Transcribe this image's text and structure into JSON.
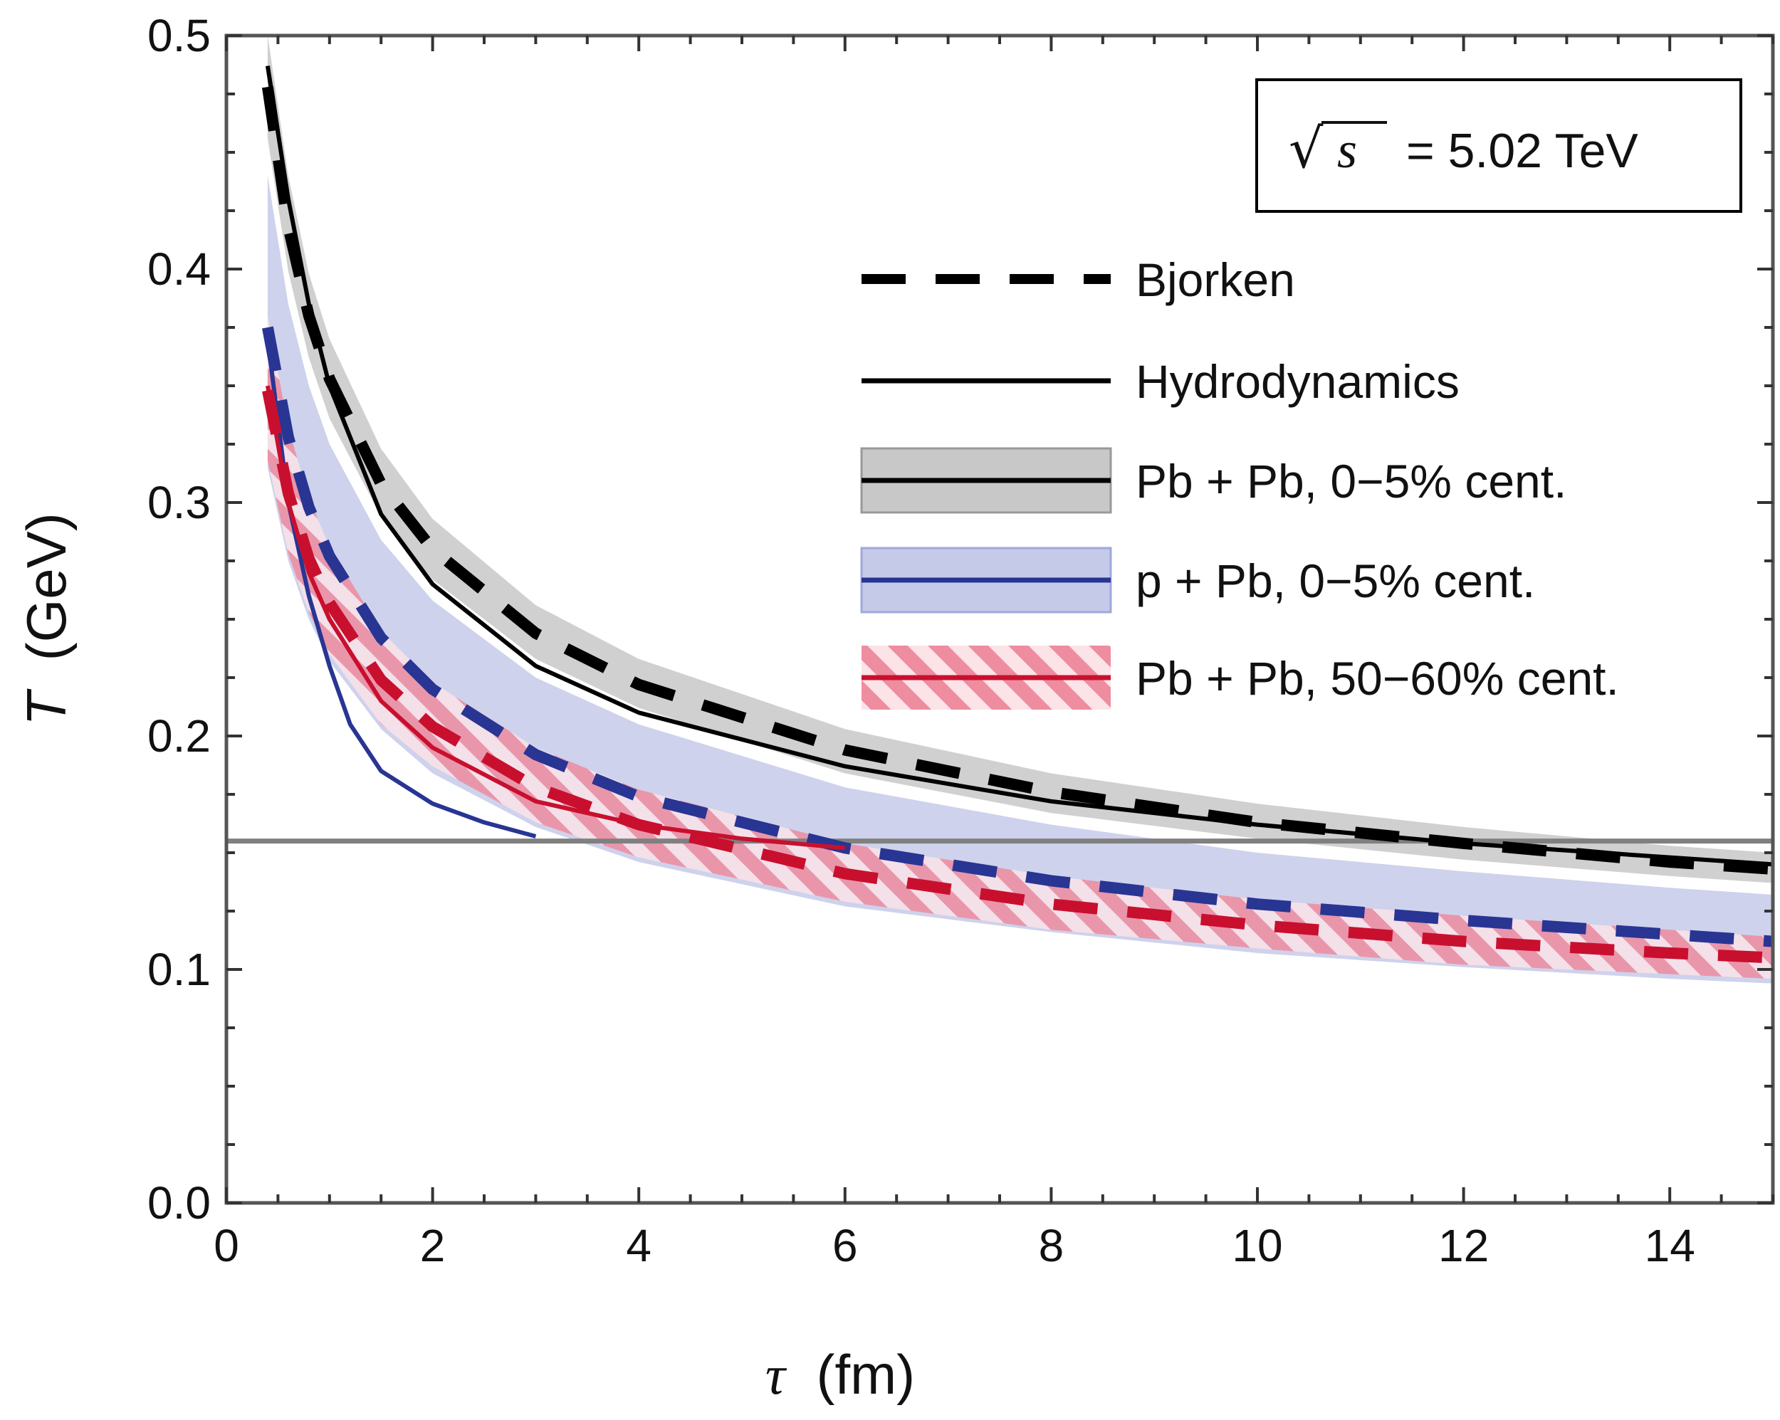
{
  "chart_data": {
    "type": "line",
    "xlabel_symbol": "τ",
    "xlabel_unit": "(fm)",
    "ylabel_symbol": "T",
    "ylabel_unit": "(GeV)",
    "xlim": [
      0,
      15
    ],
    "ylim": [
      0,
      0.5
    ],
    "x_ticks": [
      "0",
      "2",
      "4",
      "6",
      "8",
      "10",
      "12",
      "14"
    ],
    "y_ticks": [
      "0.0",
      "0.1",
      "0.2",
      "0.3",
      "0.4",
      "0.5"
    ],
    "annotation": {
      "sqrt_symbol": "√",
      "variable": "s",
      "value": "= 5.02 TeV"
    },
    "reference_line": {
      "y": 0.155,
      "color": "#808080"
    },
    "legend": [
      {
        "label": "Bjorken",
        "style": "dashed"
      },
      {
        "label": "Hydrodynamics",
        "style": "solid"
      },
      {
        "label": "Pb + Pb, 0−5% cent.",
        "color": "#000000",
        "band": "solid-gray"
      },
      {
        "label": "p + Pb, 0−5% cent.",
        "color": "#283593",
        "band": "solid-blue"
      },
      {
        "label": "Pb + Pb, 50−60% cent.",
        "color": "#c8102e",
        "band": "hatched-red"
      }
    ],
    "colors": {
      "pbpb_central": "#000000",
      "ppb_central": "#283593",
      "pbpb_peripheral": "#c8102e",
      "band_gray": "#c8c8c8",
      "band_blue": "#c5cae9",
      "band_red": "#ef8fa0"
    },
    "series": [
      {
        "name": "Pb + Pb, 0−5% cent.",
        "kind": "Hydrodynamics",
        "color": "#000000",
        "x": [
          0.4,
          0.6,
          0.8,
          1.0,
          1.5,
          2.0,
          3.0,
          4.0,
          6.0,
          8.0,
          10.0,
          12.0,
          14.0,
          15.0
        ],
        "y": [
          0.487,
          0.43,
          0.385,
          0.35,
          0.295,
          0.265,
          0.23,
          0.21,
          0.187,
          0.172,
          0.162,
          0.154,
          0.148,
          0.145
        ]
      },
      {
        "name": "Pb + Pb, 0−5% cent.",
        "kind": "Bjorken",
        "color": "#000000",
        "x": [
          0.4,
          0.6,
          0.8,
          1.0,
          1.5,
          2.0,
          3.0,
          4.0,
          6.0,
          8.0,
          10.0,
          12.0,
          14.0,
          15.0
        ],
        "y": [
          0.478,
          0.418,
          0.38,
          0.353,
          0.308,
          0.28,
          0.244,
          0.222,
          0.194,
          0.176,
          0.163,
          0.154,
          0.146,
          0.143
        ]
      },
      {
        "name": "p + Pb, 0−5% cent.",
        "kind": "Hydrodynamics",
        "color": "#283593",
        "x": [
          0.4,
          0.6,
          0.8,
          1.0,
          1.2,
          1.5,
          2.0,
          2.5,
          3.0
        ],
        "y": [
          0.37,
          0.3,
          0.26,
          0.23,
          0.205,
          0.185,
          0.171,
          0.163,
          0.157
        ]
      },
      {
        "name": "p + Pb, 0−5% cent.",
        "kind": "Bjorken",
        "color": "#283593",
        "x": [
          0.4,
          0.6,
          0.8,
          1.0,
          1.5,
          2.0,
          3.0,
          4.0,
          6.0,
          8.0,
          10.0,
          12.0,
          14.0,
          15.0
        ],
        "y": [
          0.375,
          0.328,
          0.298,
          0.277,
          0.242,
          0.22,
          0.192,
          0.174,
          0.152,
          0.138,
          0.128,
          0.121,
          0.115,
          0.112
        ]
      },
      {
        "name": "Pb + Pb, 50−60% cent.",
        "kind": "Hydrodynamics",
        "color": "#c8102e",
        "x": [
          0.4,
          0.6,
          0.8,
          1.0,
          1.5,
          2.0,
          3.0,
          4.0,
          5.0,
          6.0
        ],
        "y": [
          0.35,
          0.3,
          0.27,
          0.25,
          0.215,
          0.195,
          0.172,
          0.162,
          0.156,
          0.152
        ]
      },
      {
        "name": "Pb + Pb, 50−60% cent.",
        "kind": "Bjorken",
        "color": "#c8102e",
        "x": [
          0.4,
          0.6,
          0.8,
          1.0,
          1.5,
          2.0,
          3.0,
          4.0,
          6.0,
          8.0,
          10.0,
          12.0,
          14.0,
          15.0
        ],
        "y": [
          0.348,
          0.304,
          0.276,
          0.257,
          0.224,
          0.204,
          0.178,
          0.162,
          0.141,
          0.128,
          0.119,
          0.112,
          0.107,
          0.105
        ]
      }
    ],
    "bands": [
      {
        "name": "Pb + Pb, 0−5% cent.",
        "fill": "#c8c8c8",
        "x": [
          0.4,
          0.6,
          0.8,
          1.0,
          1.5,
          2.0,
          3.0,
          4.0,
          6.0,
          8.0,
          10.0,
          12.0,
          14.0,
          15.0
        ],
        "upper": [
          0.5,
          0.44,
          0.398,
          0.37,
          0.323,
          0.293,
          0.256,
          0.233,
          0.203,
          0.184,
          0.171,
          0.161,
          0.153,
          0.15
        ],
        "lower": [
          0.456,
          0.399,
          0.362,
          0.336,
          0.294,
          0.267,
          0.233,
          0.212,
          0.184,
          0.167,
          0.156,
          0.147,
          0.14,
          0.137
        ]
      },
      {
        "name": "p + Pb, 0−5% cent.",
        "fill": "#c5cae9",
        "x": [
          0.4,
          0.6,
          0.8,
          1.0,
          1.5,
          2.0,
          3.0,
          4.0,
          6.0,
          8.0,
          10.0,
          12.0,
          14.0,
          15.0
        ],
        "upper": [
          0.44,
          0.385,
          0.35,
          0.325,
          0.284,
          0.258,
          0.225,
          0.205,
          0.178,
          0.162,
          0.15,
          0.142,
          0.135,
          0.132
        ],
        "lower": [
          0.315,
          0.275,
          0.25,
          0.232,
          0.203,
          0.184,
          0.161,
          0.146,
          0.127,
          0.116,
          0.107,
          0.101,
          0.096,
          0.094
        ]
      },
      {
        "name": "Pb + Pb, 50−60% cent.",
        "fill": "#ef8fa0",
        "x": [
          0.4,
          0.6,
          0.8,
          1.0,
          1.5,
          2.0,
          3.0,
          4.0,
          6.0,
          8.0,
          10.0,
          12.0,
          14.0,
          15.0
        ],
        "upper": [
          0.38,
          0.332,
          0.302,
          0.281,
          0.245,
          0.223,
          0.195,
          0.177,
          0.154,
          0.14,
          0.13,
          0.123,
          0.117,
          0.114
        ],
        "lower": [
          0.318,
          0.278,
          0.253,
          0.235,
          0.205,
          0.187,
          0.163,
          0.148,
          0.129,
          0.117,
          0.109,
          0.102,
          0.098,
          0.096
        ]
      }
    ]
  }
}
